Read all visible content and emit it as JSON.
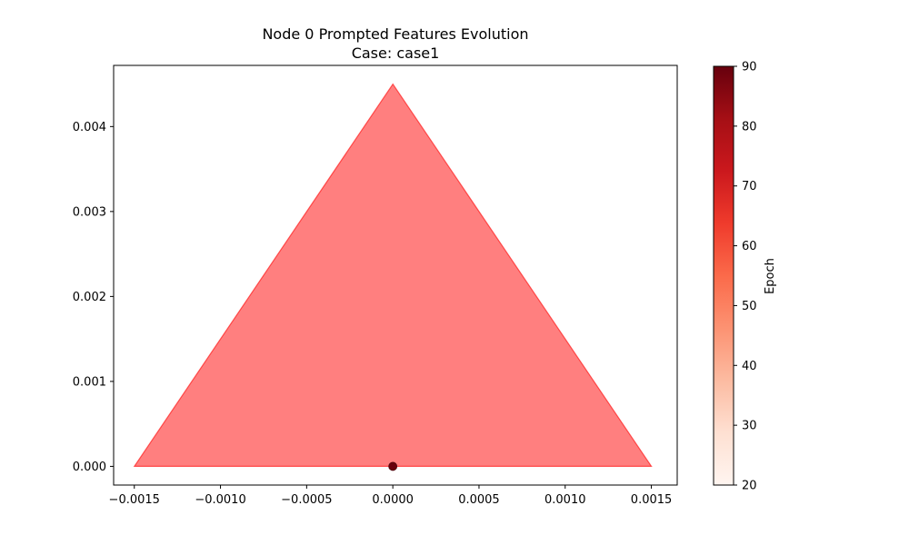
{
  "chart_data": {
    "type": "scatter",
    "title": "Node 0 Prompted Features Evolution",
    "subtitle": "Case: case1",
    "xlabel": "",
    "ylabel": "",
    "xlim": [
      -0.00162,
      0.00165
    ],
    "ylim": [
      -0.00022,
      0.00472
    ],
    "x_ticks": [
      -0.0015,
      -0.001,
      -0.0005,
      0.0,
      0.0005,
      0.001,
      0.0015
    ],
    "x_tick_labels": [
      "−0.0015",
      "−0.0010",
      "−0.0005",
      "0.0000",
      "0.0005",
      "0.0010",
      "0.0015"
    ],
    "y_ticks": [
      0.0,
      0.001,
      0.002,
      0.003,
      0.004
    ],
    "y_tick_labels": [
      "0.000",
      "0.001",
      "0.002",
      "0.003",
      "0.004"
    ],
    "grid": false,
    "triangle": {
      "vertices": [
        [
          -0.0015,
          0.0
        ],
        [
          0.0015,
          0.0
        ],
        [
          0.0,
          0.0045
        ]
      ],
      "fill": "#ff0000",
      "fill_opacity": 0.5
    },
    "points": [
      {
        "x": 0.0,
        "y": 0.0,
        "epoch": 90
      }
    ],
    "colorbar": {
      "label": "Epoch",
      "range": [
        20,
        90
      ],
      "ticks": [
        20,
        30,
        40,
        50,
        60,
        70,
        80,
        90
      ],
      "colormap": "Reds",
      "stops": [
        "#fff5f0",
        "#fee0d2",
        "#fcbba1",
        "#fc9272",
        "#fb6a4a",
        "#ef3b2c",
        "#cb181d",
        "#a50f15",
        "#67000d"
      ]
    }
  }
}
